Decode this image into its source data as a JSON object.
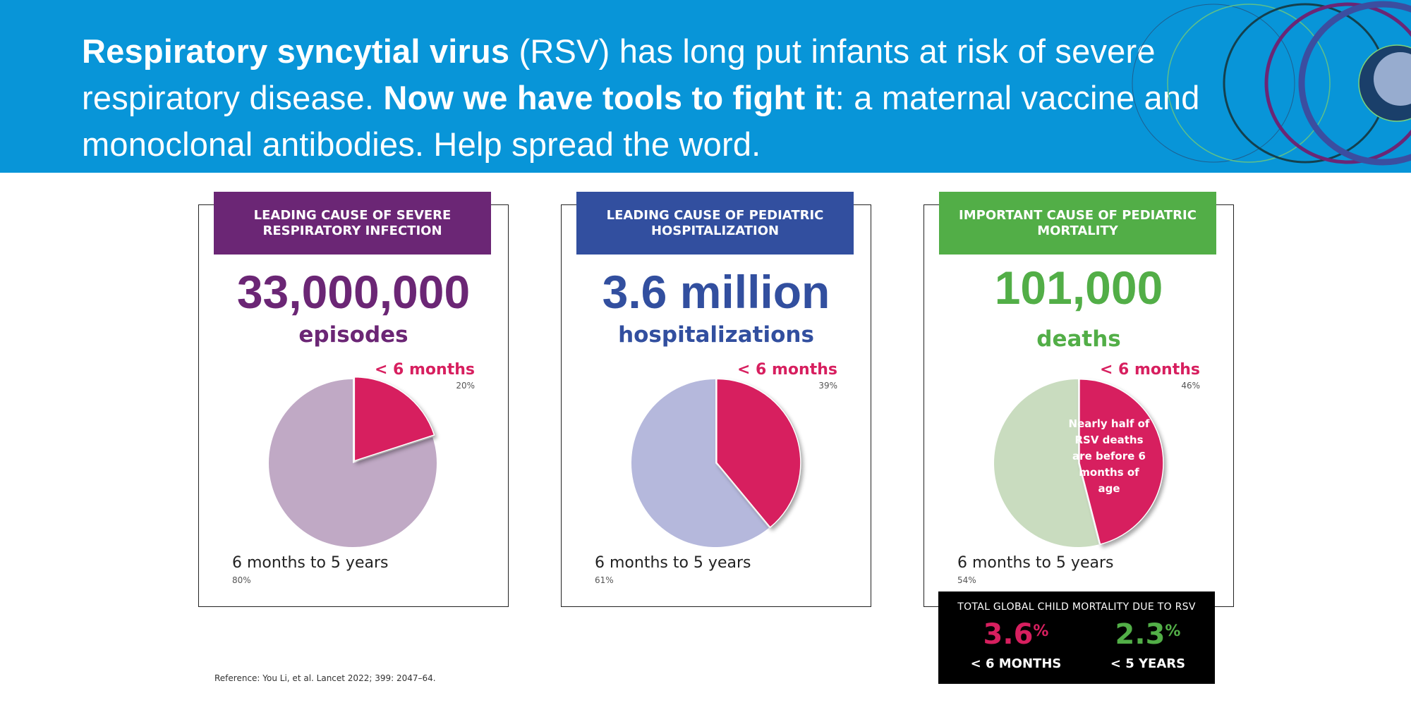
{
  "banner": {
    "bold1": "Respiratory syncytial virus",
    "text1": " (RSV) has long put infants at risk of severe respiratory disease. ",
    "bold2": "Now we have tools to fight it",
    "text2": ": a maternal vaccine and monoclonal antibodies. Help spread the word."
  },
  "colors": {
    "banner": "#0895d8",
    "purple": "#6b2675",
    "blue": "#324f9f",
    "green": "#52ae47",
    "pink": "#d71f5f"
  },
  "cards": [
    {
      "header": "LEADING CAUSE OF SEVERE RESPIRATORY INFECTION",
      "number": "33,000,000",
      "unit": "episodes",
      "young_label": "< 6 months",
      "young_pct": "20%",
      "old_label": "6 months to 5 years",
      "old_pct": "80%"
    },
    {
      "header": "LEADING CAUSE OF PEDIATRIC HOSPITALIZATION",
      "number": "3.6 million",
      "unit": "hospitalizations",
      "young_label": "< 6 months",
      "young_pct": "39%",
      "old_label": "6 months to 5 years",
      "old_pct": "61%"
    },
    {
      "header": "IMPORTANT CAUSE OF PEDIATRIC MORTALITY",
      "number": "101,000",
      "unit": "deaths",
      "young_label": "< 6 months",
      "young_pct": "46%",
      "old_label": "6 months to 5 years",
      "old_pct": "54%",
      "note": "Nearly half of RSV deaths are before 6 months of age"
    }
  ],
  "chart_data": [
    {
      "type": "pie",
      "categories": [
        "< 6 months",
        "6 months to 5 years"
      ],
      "values": [
        20,
        80
      ],
      "colors": [
        "#d71f5f",
        "#c0a9c5"
      ]
    },
    {
      "type": "pie",
      "categories": [
        "< 6 months",
        "6 months to 5 years"
      ],
      "values": [
        39,
        61
      ],
      "colors": [
        "#d71f5f",
        "#b5b8dc"
      ]
    },
    {
      "type": "pie",
      "categories": [
        "< 6 months",
        "6 months to 5 years"
      ],
      "values": [
        46,
        54
      ],
      "colors": [
        "#d71f5f",
        "#c9dcbf"
      ]
    }
  ],
  "mortality": {
    "title": "TOTAL GLOBAL CHILD MORTALITY DUE TO RSV",
    "items": [
      {
        "value": "3.6",
        "unit": "%",
        "label": "< 6 MONTHS",
        "color": "#d71f5f"
      },
      {
        "value": "2.3",
        "unit": "%",
        "label": "< 5 YEARS",
        "color": "#52ae47"
      }
    ]
  },
  "reference": "Reference:  You Li, et al. Lancet 2022; 399: 2047–64."
}
